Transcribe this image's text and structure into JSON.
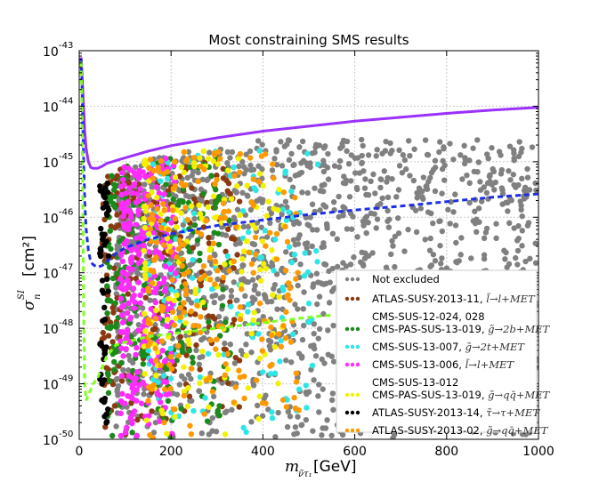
{
  "chart_data": {
    "type": "scatter",
    "title": "Most constraining SMS results",
    "xlabel": "m",
    "xlabel_sub": "ν̃τ₁",
    "xlabel_unit": "[GeV]",
    "ylabel": "σ",
    "ylabel_sup": "SI",
    "ylabel_sub": "n",
    "ylabel_unit": "[cm²]",
    "xlim": [
      0,
      1000
    ],
    "ylim_log10": [
      -50,
      -43
    ],
    "y_scale": "log",
    "grid": true,
    "legend_position": "lower-right",
    "x_ticks": [
      0,
      200,
      400,
      600,
      800,
      1000
    ],
    "x_tick_labels": [
      "0",
      "200",
      "400",
      "600",
      "800",
      "1000"
    ],
    "y_tick_exponents": [
      -43,
      -44,
      -45,
      -46,
      -47,
      -48,
      -49,
      -50
    ],
    "y_tick_base": "10",
    "y_tick_exp_labels": [
      "-43",
      "-44",
      "-45",
      "-46",
      "-47",
      "-48",
      "-49",
      "-50"
    ],
    "series": [
      {
        "name": "Not excluded",
        "color": "#808080",
        "legend_main": "Not excluded",
        "legend_math": "",
        "x_range": [
          80,
          1000
        ],
        "ymax_log10": -44.6,
        "count": 1500
      },
      {
        "name": "ATLAS-SUSY-2013-11",
        "color": "#8b3a0f",
        "legend_main": "ATLAS-SUSY-2013-11,",
        "legend_math": "l̃→l+MET",
        "x_range": [
          50,
          350
        ],
        "ymax_log10": -45.0,
        "count": 260
      },
      {
        "name": "CMS-SUS-12-024, 028 / CMS-PAS-SUS-13-019",
        "color": "#1a8a1a",
        "legend_main": "CMS-SUS-12-024, 028",
        "legend_line2": "CMS-PAS-SUS-13-019,",
        "legend_math": "g̃→2b+MET",
        "x_range": [
          60,
          330
        ],
        "ymax_log10": -44.9,
        "count": 240
      },
      {
        "name": "CMS-SUS-13-007",
        "color": "#2ee6e6",
        "legend_main": "CMS-SUS-13-007,",
        "legend_math": "g̃→2t+MET",
        "x_range": [
          150,
          520
        ],
        "ymax_log10": -44.8,
        "count": 140
      },
      {
        "name": "CMS-SUS-13-006",
        "color": "#ff2bff",
        "legend_main": "CMS-SUS-13-006,",
        "legend_math": "l̃→l+MET",
        "x_range": [
          90,
          210
        ],
        "ymax_log10": -44.9,
        "count": 280
      },
      {
        "name": "CMS-SUS-13-012 / CMS-PAS-SUS-13-019",
        "color": "#f2f200",
        "legend_main": "CMS-SUS-13-012",
        "legend_line2": "CMS-PAS-SUS-13-019,",
        "legend_math": "g̃→qq̄+MET",
        "x_range": [
          140,
          450
        ],
        "ymax_log10": -44.8,
        "count": 160
      },
      {
        "name": "ATLAS-SUSY-2013-14",
        "color": "#000000",
        "legend_main": "ATLAS-SUSY-2013-14,",
        "legend_math": "τ̃→τ+MET",
        "x_range": [
          45,
          65
        ],
        "ymax_log10": -45.1,
        "count": 60
      },
      {
        "name": "ATLAS-SUSY-2013-02",
        "color": "#ff9900",
        "legend_main": "ATLAS-SUSY-2013-02,",
        "legend_math": "g̃→qq̄+MET",
        "x_range": [
          150,
          480
        ],
        "ymax_log10": -44.8,
        "count": 220
      }
    ],
    "curves": [
      {
        "name": "purple limit",
        "color": "#9b30ff",
        "style": "solid",
        "x": [
          4,
          6,
          8,
          10,
          12,
          15,
          20,
          25,
          30,
          40,
          50,
          60,
          80,
          100,
          150,
          200,
          300,
          400,
          500,
          600,
          700,
          800,
          900,
          1000
        ],
        "y_log10": [
          -43.12,
          -43.4,
          -43.75,
          -44.1,
          -44.45,
          -44.75,
          -45.0,
          -45.1,
          -45.12,
          -45.12,
          -45.08,
          -45.03,
          -44.98,
          -44.93,
          -44.81,
          -44.71,
          -44.57,
          -44.45,
          -44.36,
          -44.27,
          -44.2,
          -44.13,
          -44.07,
          -44.02
        ]
      },
      {
        "name": "blue dashed limit",
        "color": "#1c2ee6",
        "style": "dashed",
        "x": [
          4,
          6,
          8,
          10,
          12,
          15,
          20,
          25,
          30,
          35,
          40,
          50,
          60,
          80,
          100,
          150,
          200,
          300,
          400,
          500,
          600,
          700,
          800,
          900,
          1000
        ],
        "y_log10": [
          -43.15,
          -43.6,
          -44.4,
          -45.1,
          -45.7,
          -46.2,
          -46.6,
          -46.8,
          -46.85,
          -46.88,
          -46.9,
          -46.87,
          -46.8,
          -46.65,
          -46.55,
          -46.4,
          -46.3,
          -46.15,
          -46.05,
          -45.95,
          -45.87,
          -45.8,
          -45.72,
          -45.64,
          -45.58
        ]
      },
      {
        "name": "green dashed limit",
        "color": "#7fff1f",
        "style": "dashed",
        "x": [
          4,
          6,
          8,
          10,
          12,
          15,
          20,
          30,
          40,
          50,
          60,
          80,
          100,
          150,
          200,
          300,
          400,
          500,
          550
        ],
        "y_log10": [
          -43.2,
          -44.0,
          -46.0,
          -48.0,
          -49.0,
          -49.3,
          -49.2,
          -49.0,
          -48.9,
          -48.7,
          -48.5,
          -48.3,
          -48.25,
          -48.15,
          -48.1,
          -48.0,
          -47.9,
          -47.8,
          -47.76
        ]
      }
    ]
  }
}
